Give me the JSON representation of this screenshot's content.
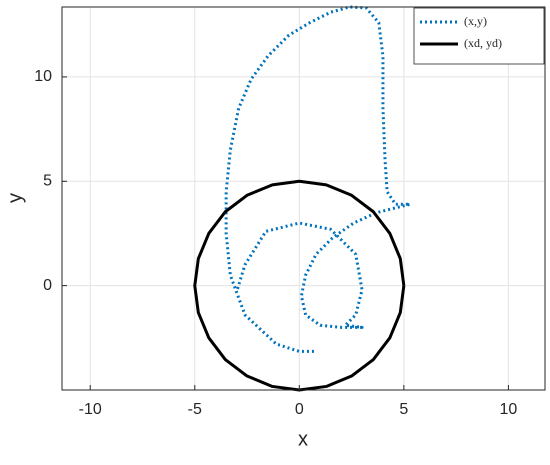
{
  "chart_data": {
    "type": "line",
    "xlabel": "x",
    "ylabel": "y",
    "xlim": [
      -11.35,
      11.75
    ],
    "ylim": [
      -5,
      13.35
    ],
    "xticks": [
      -10,
      -5,
      0,
      5,
      10
    ],
    "yticks": [
      0,
      5,
      10
    ],
    "grid": true,
    "legend": "top-right",
    "series": [
      {
        "name": "(x,y)",
        "color": "#0072bd",
        "style": "dotted",
        "x": [
          0.7,
          0,
          -1.1,
          -2.6,
          -3.3,
          -3.5,
          -3.5,
          -3.3,
          -2.9,
          -2.3,
          -1.5,
          -0.5,
          0.5,
          1.5,
          2.4,
          3.2,
          3.8,
          4,
          4,
          4.1,
          4.2,
          4.6,
          5.3,
          3.7,
          2.6,
          1.6,
          0.8,
          0.3,
          0.1,
          0.3,
          1,
          2,
          3,
          2.2,
          2.7,
          3,
          2.7,
          1.5,
          0,
          -1.6,
          -2.6,
          -3
        ],
        "values": [
          -3.15,
          -3.15,
          -2.8,
          -1.4,
          0.5,
          2.5,
          4.5,
          6.5,
          8.5,
          9.9,
          11,
          12,
          12.6,
          13.1,
          13.35,
          13.3,
          12.6,
          11,
          8.5,
          6,
          4.5,
          3.9,
          3.9,
          3.5,
          3,
          2.3,
          1.5,
          0.5,
          -0.5,
          -1.4,
          -1.9,
          -2,
          -2,
          -1.9,
          -1.4,
          -0.2,
          1.5,
          2.7,
          3,
          2.6,
          1,
          -0.3
        ]
      },
      {
        "name": "(xd, yd)",
        "color": "#000000",
        "style": "solid",
        "x": [
          5,
          4.83,
          4.33,
          3.54,
          2.5,
          1.29,
          0,
          -1.29,
          -2.5,
          -3.54,
          -4.33,
          -4.83,
          -5,
          -4.83,
          -4.33,
          -3.54,
          -2.5,
          -1.29,
          0,
          1.29,
          2.5,
          3.54,
          4.33,
          4.83,
          5
        ],
        "values": [
          0,
          1.29,
          2.5,
          3.54,
          4.33,
          4.83,
          5,
          4.83,
          4.33,
          3.54,
          2.5,
          1.29,
          0,
          -1.29,
          -2.5,
          -3.54,
          -4.33,
          -4.83,
          -5,
          -4.83,
          -4.33,
          -3.54,
          -2.5,
          -1.29,
          0
        ]
      }
    ]
  }
}
